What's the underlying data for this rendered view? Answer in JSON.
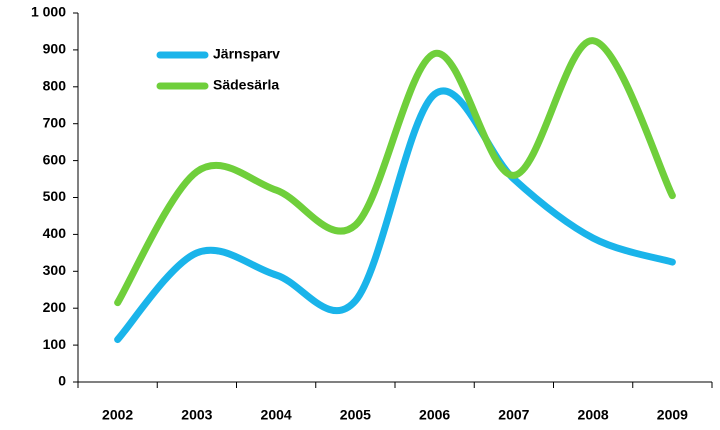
{
  "chart_data": {
    "type": "line",
    "categories": [
      "2002",
      "2003",
      "2004",
      "2005",
      "2006",
      "2007",
      "2008",
      "2009"
    ],
    "series": [
      {
        "name": "Järnsparv",
        "color": "#1ab4ea",
        "values": [
          115,
          350,
          290,
          220,
          780,
          550,
          390,
          325
        ]
      },
      {
        "name": "Sädesärla",
        "color": "#6fcf3b",
        "values": [
          215,
          570,
          520,
          425,
          890,
          560,
          925,
          505
        ]
      }
    ],
    "ylim": [
      0,
      1000
    ],
    "yticks": [
      0,
      100,
      200,
      300,
      400,
      500,
      600,
      700,
      800,
      900,
      {
        "value": 1000,
        "label": "1 000"
      }
    ],
    "smooth": true,
    "legend": "top-left"
  }
}
